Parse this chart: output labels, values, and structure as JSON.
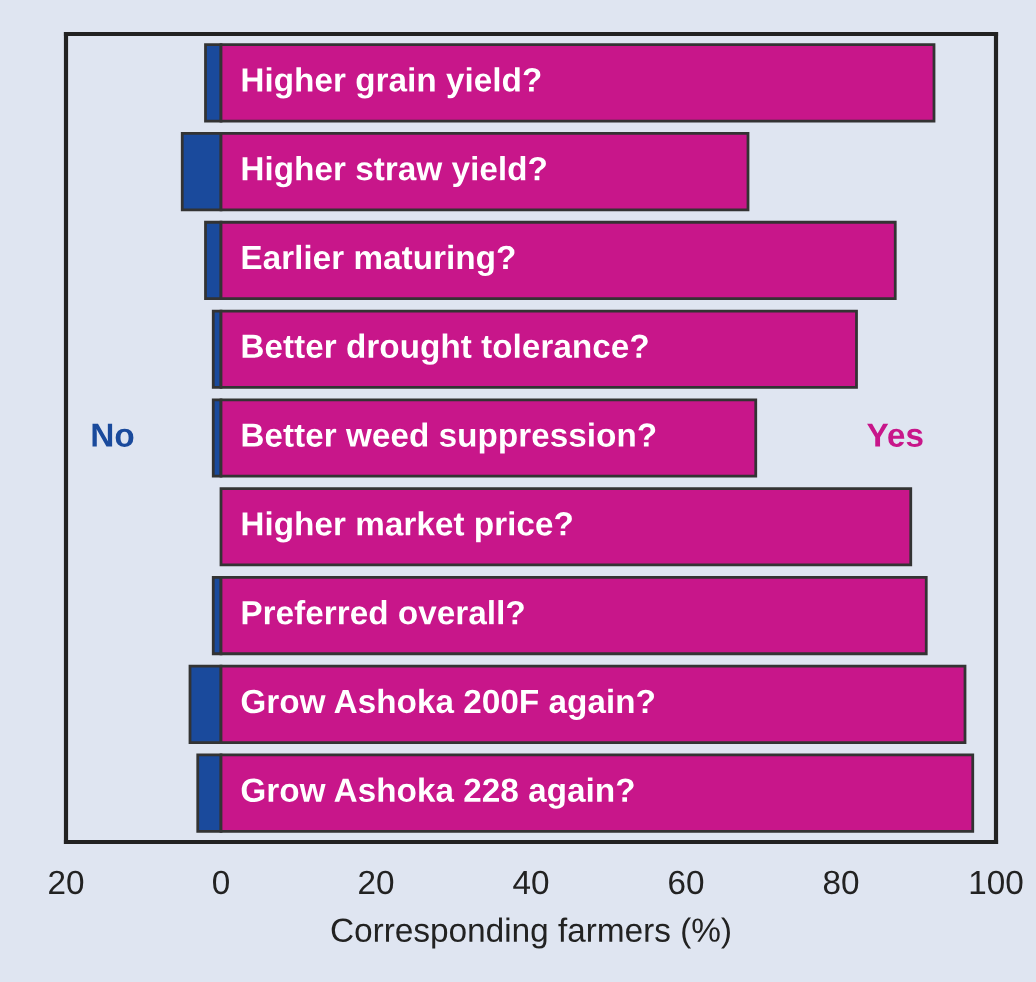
{
  "chart_data": {
    "type": "bar",
    "orientation": "horizontal",
    "xlabel": "Corresponding farmers (%)",
    "categories": [
      "Higher grain yield?",
      "Higher straw yield?",
      "Earlier maturing?",
      "Better drought tolerance?",
      "Better weed suppression?",
      "Higher market price?",
      "Preferred overall?",
      "Grow Ashoka 200F again?",
      "Grow Ashoka 228 again?"
    ],
    "series": [
      {
        "name": "No",
        "color": "#1a4a9c",
        "values": [
          -2,
          -5,
          -2,
          -1,
          -1,
          null,
          -1,
          -4,
          -3
        ]
      },
      {
        "name": "Yes",
        "color": "#c8168a",
        "values": [
          92,
          68,
          87,
          82,
          69,
          89,
          91,
          96,
          97
        ]
      }
    ],
    "xlim": [
      -20,
      100
    ],
    "xticks": [
      {
        "value": -20,
        "label": "20"
      },
      0,
      20,
      40,
      60,
      80,
      100
    ],
    "grid": false,
    "legend": false,
    "stacked": true
  }
}
